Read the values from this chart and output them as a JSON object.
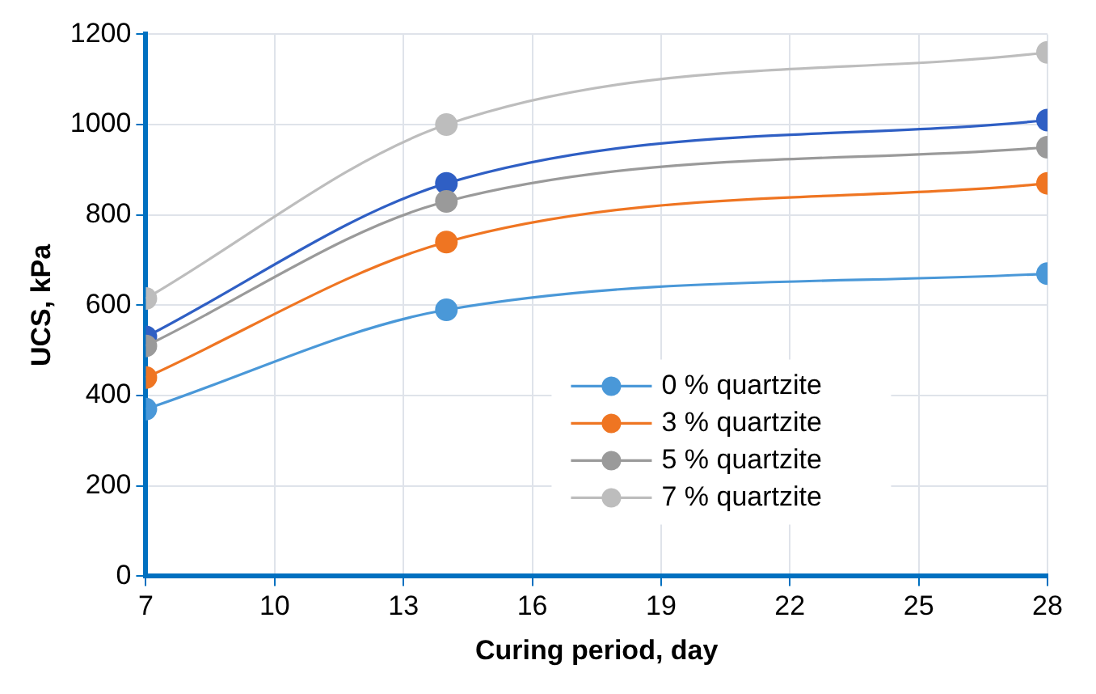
{
  "chart_data": {
    "type": "line",
    "xlabel": "Curing period, day",
    "ylabel": "UCS, kPa",
    "x": [
      7,
      14,
      28
    ],
    "series": [
      {
        "name": "0 % quartzite",
        "color": "#4a98d8",
        "values": [
          370,
          590,
          670
        ]
      },
      {
        "name": "3 % quartzite",
        "color": "#ef7522",
        "values": [
          440,
          740,
          870
        ]
      },
      {
        "name": "5 % quartzite",
        "color": "#9a9a9a",
        "values": [
          510,
          830,
          950
        ]
      },
      {
        "name": "7 % quartzite",
        "color": "#bdbdbd",
        "values": [
          615,
          1000,
          1160
        ]
      },
      {
        "color": "#2f5fc4",
        "values": [
          530,
          870,
          1010
        ]
      }
    ],
    "xlim": [
      7,
      28
    ],
    "xticks": [
      7,
      10,
      13,
      16,
      19,
      22,
      25,
      28
    ],
    "ylim": [
      0,
      1200
    ],
    "yticks": [
      0,
      200,
      400,
      600,
      800,
      1000,
      1200
    ],
    "grid": true,
    "legend": "bottom right",
    "marker": "circle",
    "line_style": "solid"
  }
}
